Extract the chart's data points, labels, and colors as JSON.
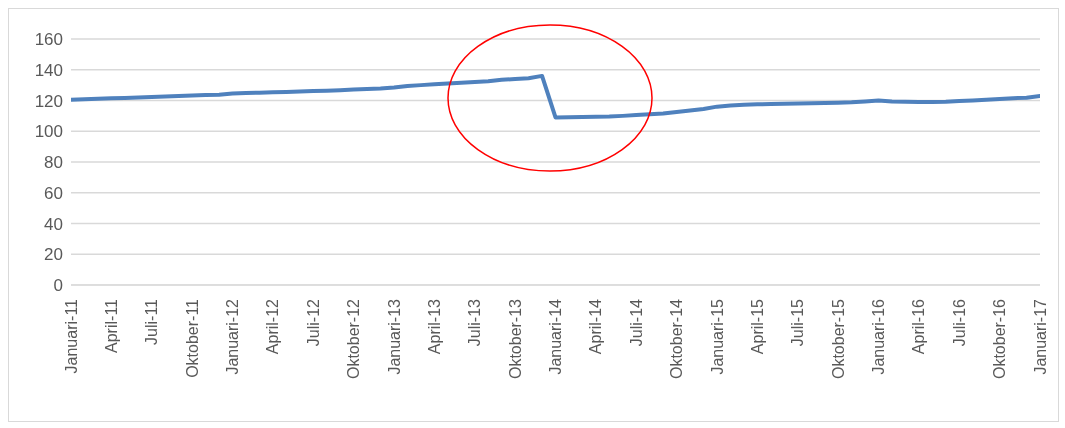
{
  "chart_data": {
    "type": "line",
    "categories": [
      "Januari-11",
      null,
      null,
      "April-11",
      null,
      null,
      "Juli-11",
      null,
      null,
      "Oktober-11",
      null,
      null,
      "Januari-12",
      null,
      null,
      "April-12",
      null,
      null,
      "Juli-12",
      null,
      null,
      "Oktober-12",
      null,
      null,
      "Januari-13",
      null,
      null,
      "April-13",
      null,
      null,
      "Juli-13",
      null,
      null,
      "Oktober-13",
      null,
      null,
      "Januari-14",
      null,
      null,
      "April-14",
      null,
      null,
      "Juli-14",
      null,
      null,
      "Oktober-14",
      null,
      null,
      "Januari-15",
      null,
      null,
      "April-15",
      null,
      null,
      "Juli-15",
      null,
      null,
      "Oktober-15",
      null,
      null,
      "Januari-16",
      null,
      null,
      "April-16",
      null,
      null,
      "Juli-16",
      null,
      null,
      "Oktober-16",
      null,
      null,
      "Januari-17"
    ],
    "series": [
      {
        "color": "#4f81bd",
        "values": [
          120.5,
          120.8,
          121.1,
          121.4,
          121.7,
          122,
          122.3,
          122.6,
          122.9,
          123.2,
          123.5,
          123.8,
          124.5,
          124.8,
          125.1,
          125.4,
          125.6,
          125.8,
          126.1,
          126.4,
          126.7,
          127.1,
          127.5,
          127.8,
          128.5,
          129.5,
          130,
          130.5,
          131,
          131.5,
          132,
          132.5,
          133.5,
          134,
          134.5,
          136,
          109,
          109.1,
          109.2,
          109.4,
          109.6,
          110,
          110.5,
          111,
          111.5,
          112.5,
          113.5,
          114.5,
          116,
          116.8,
          117.2,
          117.5,
          117.7,
          117.9,
          118,
          118.2,
          118.4,
          118.6,
          118.9,
          119.4,
          120,
          119.3,
          119.2,
          119,
          119,
          119.2,
          119.6,
          120,
          120.5,
          121,
          121.5,
          121.8,
          123
        ]
      }
    ],
    "ylim": [
      0,
      160
    ],
    "yticks": [
      0,
      20,
      40,
      60,
      80,
      100,
      120,
      140,
      160
    ],
    "grid": "y",
    "legend": false,
    "marker": "none",
    "line_style": "solid"
  }
}
